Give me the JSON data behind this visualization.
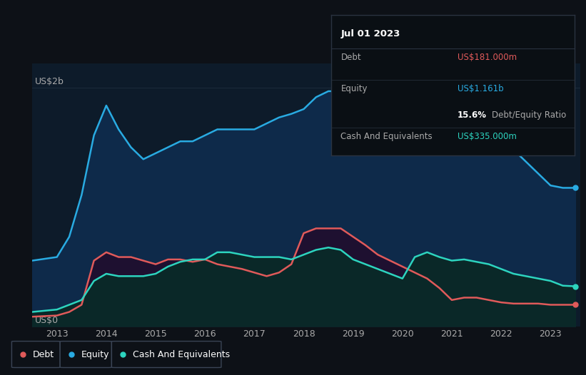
{
  "background_color": "#0d1117",
  "plot_bg_color": "#0d1b2a",
  "debt_color": "#e05a5a",
  "equity_color": "#29abe2",
  "cash_color": "#2dd4bf",
  "ylabel_top": "US$2b",
  "ylabel_bottom": "US$0",
  "annotation_box": {
    "date": "Jul 01 2023",
    "debt_val": "US$181.000m",
    "equity_val": "US$1.161b",
    "ratio": "15.6%",
    "ratio_label": "Debt/Equity Ratio",
    "cash_val": "US$335.000m",
    "box_bg": "#0a0f14",
    "border_color": "#2a3340",
    "text_color": "#aaaaaa",
    "debt_color": "#e05a5a",
    "equity_color": "#29abe2",
    "cash_color": "#2dd4bf",
    "white_color": "#ffffff"
  },
  "years": [
    2012.5,
    2013.0,
    2013.25,
    2013.5,
    2013.75,
    2014.0,
    2014.25,
    2014.5,
    2014.75,
    2015.0,
    2015.25,
    2015.5,
    2015.75,
    2016.0,
    2016.25,
    2016.5,
    2016.75,
    2017.0,
    2017.25,
    2017.5,
    2017.75,
    2018.0,
    2018.25,
    2018.5,
    2018.75,
    2019.0,
    2019.25,
    2019.5,
    2019.75,
    2020.0,
    2020.25,
    2020.5,
    2020.75,
    2021.0,
    2021.25,
    2021.5,
    2021.75,
    2022.0,
    2022.25,
    2022.5,
    2022.75,
    2023.0,
    2023.25,
    2023.5
  ],
  "equity": [
    0.55,
    0.58,
    0.75,
    1.1,
    1.6,
    1.85,
    1.65,
    1.5,
    1.4,
    1.45,
    1.5,
    1.55,
    1.55,
    1.6,
    1.65,
    1.65,
    1.65,
    1.65,
    1.7,
    1.75,
    1.78,
    1.82,
    1.92,
    1.97,
    1.97,
    1.97,
    1.95,
    1.93,
    1.92,
    1.92,
    1.82,
    1.78,
    1.7,
    1.65,
    1.72,
    1.78,
    1.68,
    1.58,
    1.48,
    1.38,
    1.28,
    1.18,
    1.16,
    1.16
  ],
  "debt": [
    0.08,
    0.09,
    0.12,
    0.18,
    0.55,
    0.62,
    0.58,
    0.58,
    0.55,
    0.52,
    0.56,
    0.56,
    0.54,
    0.56,
    0.52,
    0.5,
    0.48,
    0.45,
    0.42,
    0.45,
    0.52,
    0.78,
    0.82,
    0.82,
    0.82,
    0.75,
    0.68,
    0.6,
    0.55,
    0.5,
    0.45,
    0.4,
    0.32,
    0.22,
    0.24,
    0.24,
    0.22,
    0.2,
    0.19,
    0.19,
    0.19,
    0.18,
    0.18,
    0.18
  ],
  "cash": [
    0.12,
    0.14,
    0.18,
    0.22,
    0.38,
    0.44,
    0.42,
    0.42,
    0.42,
    0.44,
    0.5,
    0.54,
    0.56,
    0.56,
    0.62,
    0.62,
    0.6,
    0.58,
    0.58,
    0.58,
    0.56,
    0.6,
    0.64,
    0.66,
    0.64,
    0.56,
    0.52,
    0.48,
    0.44,
    0.4,
    0.58,
    0.62,
    0.58,
    0.55,
    0.56,
    0.54,
    0.52,
    0.48,
    0.44,
    0.42,
    0.4,
    0.38,
    0.34,
    0.335
  ],
  "xlim": [
    2012.5,
    2023.6
  ],
  "ylim": [
    0,
    2.2
  ],
  "xticks": [
    2013,
    2014,
    2015,
    2016,
    2017,
    2018,
    2019,
    2020,
    2021,
    2022,
    2023
  ],
  "grid_color": "#1e2d3d",
  "divider_color": "#2a3340",
  "legend_items": [
    {
      "label": "Debt",
      "color": "#e05a5a"
    },
    {
      "label": "Equity",
      "color": "#29abe2"
    },
    {
      "label": "Cash And Equivalents",
      "color": "#2dd4bf"
    }
  ]
}
